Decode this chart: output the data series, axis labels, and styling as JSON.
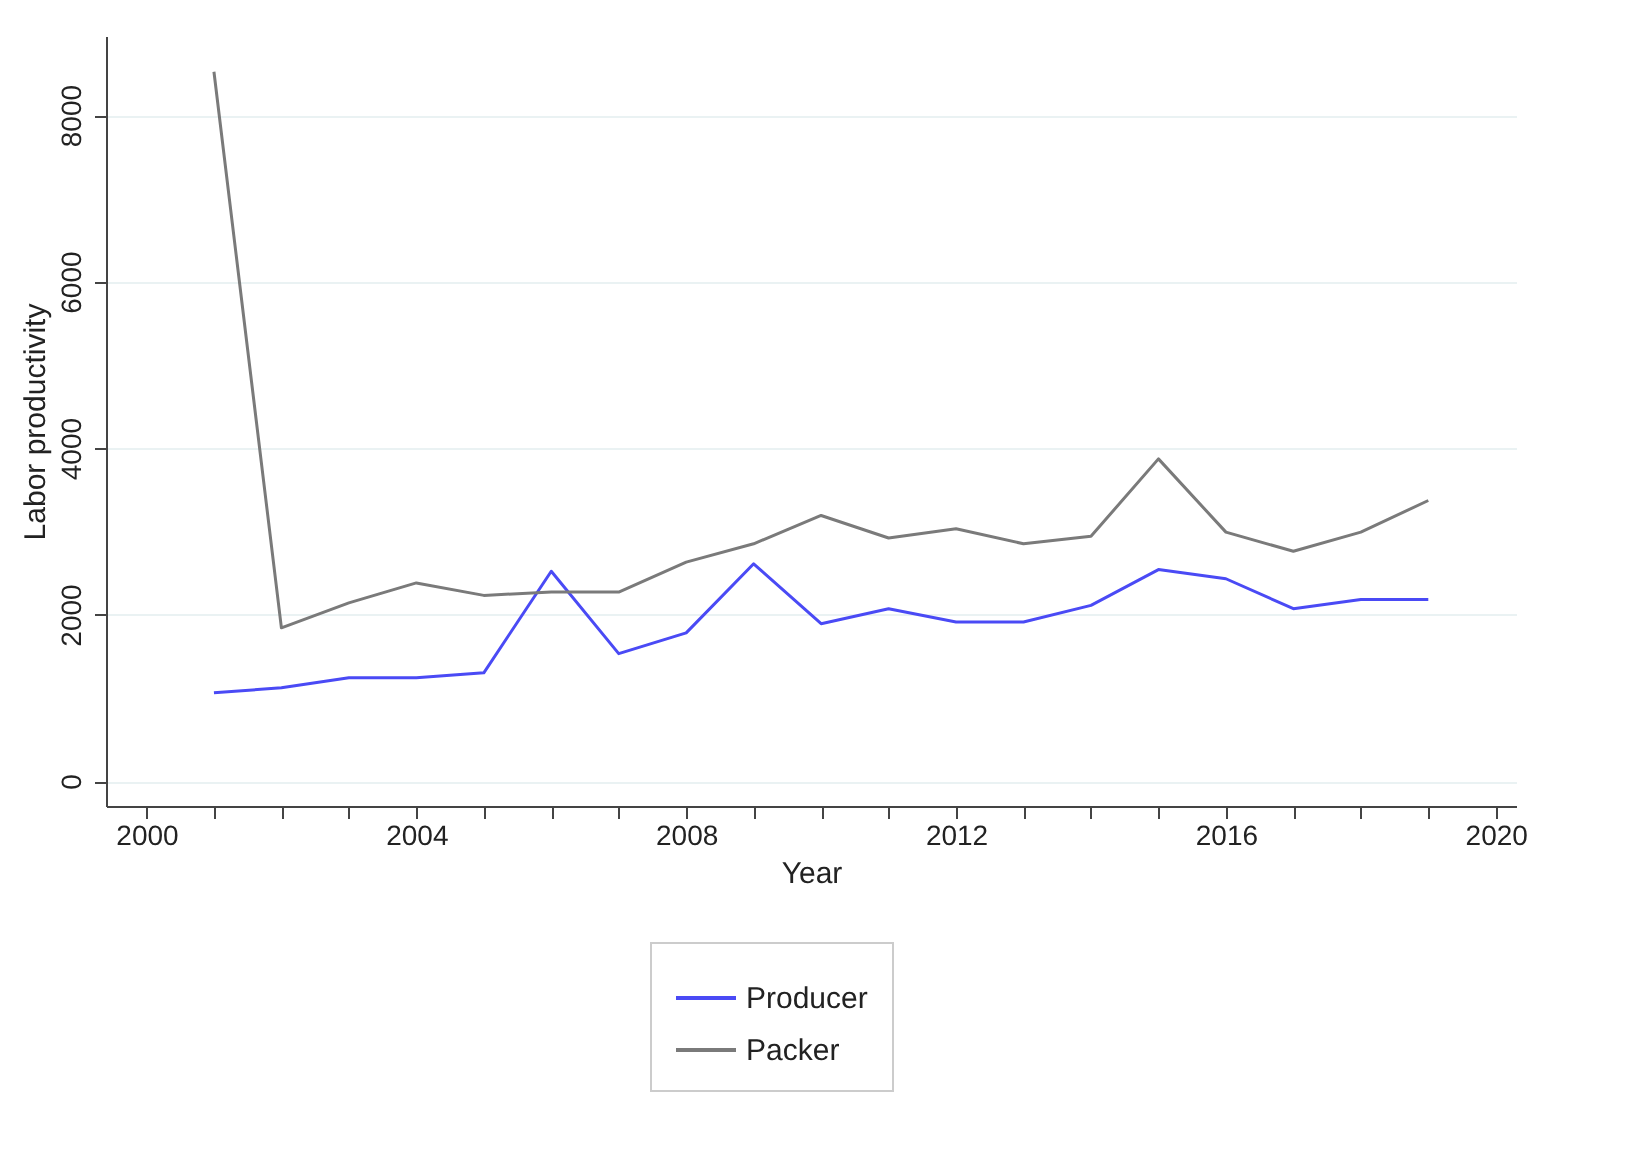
{
  "chart_data": {
    "type": "line",
    "xlabel": "Year",
    "ylabel": "Labor productivity",
    "x": [
      2001,
      2002,
      2003,
      2004,
      2005,
      2006,
      2007,
      2008,
      2009,
      2010,
      2011,
      2012,
      2013,
      2014,
      2015,
      2016,
      2017,
      2018,
      2019
    ],
    "series": [
      {
        "name": "Producer",
        "color": "#4a4af5",
        "values": [
          1060,
          1120,
          1240,
          1240,
          1300,
          2520,
          1530,
          1780,
          2610,
          1890,
          2070,
          1910,
          1910,
          2110,
          2540,
          2430,
          2070,
          2180,
          2180
        ]
      },
      {
        "name": "Packer",
        "color": "#7a7a7a",
        "values": [
          8520,
          1840,
          2140,
          2380,
          2230,
          2270,
          2270,
          2630,
          2850,
          3190,
          2920,
          3030,
          2850,
          2940,
          3870,
          2990,
          2760,
          2990,
          3370
        ]
      }
    ],
    "xlim": [
      1999.4,
      2020.3
    ],
    "xticks": [
      2000,
      {
        "value": 2001,
        "label": null
      },
      {
        "value": 2002,
        "label": null
      },
      {
        "value": 2003,
        "label": null
      },
      2004,
      {
        "value": 2005,
        "label": null
      },
      {
        "value": 2006,
        "label": null
      },
      {
        "value": 2007,
        "label": null
      },
      2008,
      {
        "value": 2009,
        "label": null
      },
      {
        "value": 2010,
        "label": null
      },
      {
        "value": 2011,
        "label": null
      },
      2012,
      {
        "value": 2013,
        "label": null
      },
      {
        "value": 2014,
        "label": null
      },
      {
        "value": 2015,
        "label": null
      },
      2016,
      {
        "value": 2017,
        "label": null
      },
      {
        "value": 2018,
        "label": null
      },
      {
        "value": 2019,
        "label": null
      },
      2020
    ],
    "ylim": [
      -300,
      8950
    ],
    "yticks": [
      0,
      2000,
      4000,
      6000,
      8000
    ],
    "grid": "y",
    "legend": "bottom",
    "marker": "none",
    "line_style": "solid"
  }
}
